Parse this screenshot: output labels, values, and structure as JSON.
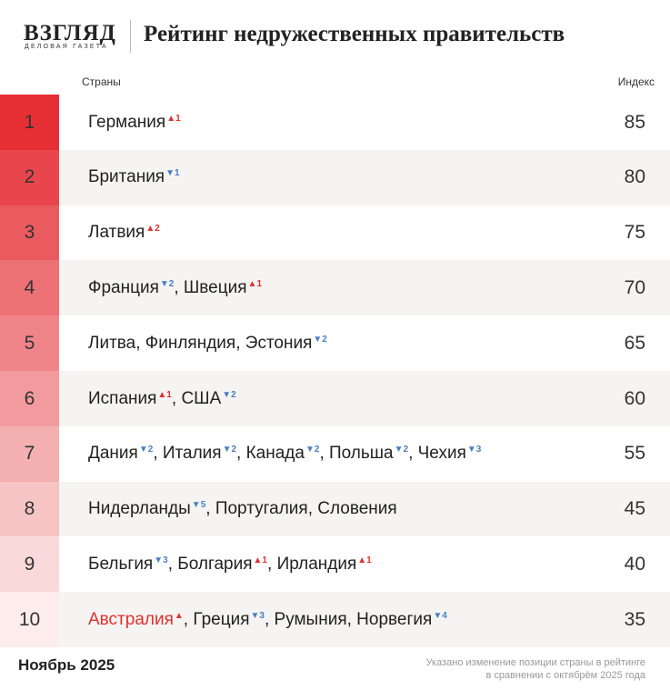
{
  "header": {
    "logo": "ВЗГЛЯД",
    "logo_sub": "ДЕЛОВАЯ ГАЗЕТА",
    "title": "Рейтинг недружественных правительств"
  },
  "table": {
    "columns": [
      "Страны",
      "Индекс"
    ],
    "separator": ", ",
    "rows": [
      {
        "rank": 1,
        "color": "#e52f35",
        "index": 85,
        "countries": [
          {
            "name": "Германия",
            "change": {
              "text": "▲1",
              "color": "#e0312f"
            }
          }
        ]
      },
      {
        "rank": 2,
        "color": "#e8464c",
        "index": 80,
        "countries": [
          {
            "name": "Британия",
            "change": {
              "text": "▼1",
              "color": "#4a7fc1"
            }
          }
        ]
      },
      {
        "rank": 3,
        "color": "#ea5b60",
        "index": 75,
        "countries": [
          {
            "name": "Латвия",
            "change": {
              "text": "▲2",
              "color": "#e0312f"
            }
          }
        ]
      },
      {
        "rank": 4,
        "color": "#ed7074",
        "index": 70,
        "countries": [
          {
            "name": "Франция",
            "change": {
              "text": "▼2",
              "color": "#4a7fc1"
            }
          },
          {
            "name": "Швеция",
            "change": {
              "text": "▲1",
              "color": "#e0312f"
            }
          }
        ]
      },
      {
        "rank": 5,
        "color": "#ef8589",
        "index": 65,
        "countries": [
          {
            "name": "Литва"
          },
          {
            "name": "Финляндия"
          },
          {
            "name": "Эстония",
            "change": {
              "text": "▼2",
              "color": "#4a7fc1"
            }
          }
        ]
      },
      {
        "rank": 6,
        "color": "#f29a9d",
        "index": 60,
        "countries": [
          {
            "name": "Испания",
            "change": {
              "text": "▲1",
              "color": "#e0312f"
            }
          },
          {
            "name": "США",
            "change": {
              "text": "▼2",
              "color": "#4a7fc1"
            }
          }
        ]
      },
      {
        "rank": 7,
        "color": "#f4afb1",
        "index": 55,
        "countries": [
          {
            "name": "Дания",
            "change": {
              "text": "▼2",
              "color": "#4a7fc1"
            }
          },
          {
            "name": "Италия",
            "change": {
              "text": "▼2",
              "color": "#4a7fc1"
            }
          },
          {
            "name": "Канада",
            "change": {
              "text": "▼2",
              "color": "#4a7fc1"
            }
          },
          {
            "name": "Польша",
            "change": {
              "text": "▼2",
              "color": "#4a7fc1"
            }
          },
          {
            "name": "Чехия",
            "change": {
              "text": "▼3",
              "color": "#4a7fc1"
            }
          }
        ]
      },
      {
        "rank": 8,
        "color": "#f7c4c6",
        "index": 45,
        "countries": [
          {
            "name": "Нидерланды",
            "change": {
              "text": "▼5",
              "color": "#4a7fc1"
            }
          },
          {
            "name": "Португалия"
          },
          {
            "name": "Словения"
          }
        ]
      },
      {
        "rank": 9,
        "color": "#f9d9da",
        "index": 40,
        "countries": [
          {
            "name": "Бельгия",
            "change": {
              "text": "▼3",
              "color": "#4a7fc1"
            }
          },
          {
            "name": "Болгария",
            "change": {
              "text": "▲1",
              "color": "#e0312f"
            }
          },
          {
            "name": "Ирландия",
            "change": {
              "text": "▲1",
              "color": "#e0312f"
            }
          }
        ]
      },
      {
        "rank": 10,
        "color": "#fcecec",
        "index": 35,
        "countries": [
          {
            "name": "Австралия",
            "color": "#e0312f",
            "change": {
              "text": "▲",
              "color": "#e0312f"
            }
          },
          {
            "name": "Греция",
            "change": {
              "text": "▼3",
              "color": "#4a7fc1"
            }
          },
          {
            "name": "Румыния"
          },
          {
            "name": "Норвегия",
            "change": {
              "text": "▼4",
              "color": "#4a7fc1"
            }
          }
        ]
      }
    ]
  },
  "footer": {
    "date": "Ноябрь 2025",
    "note": [
      "Указано изменение позиции страны в рейтинге",
      "в сравнении с октябрём 2025 года"
    ]
  }
}
